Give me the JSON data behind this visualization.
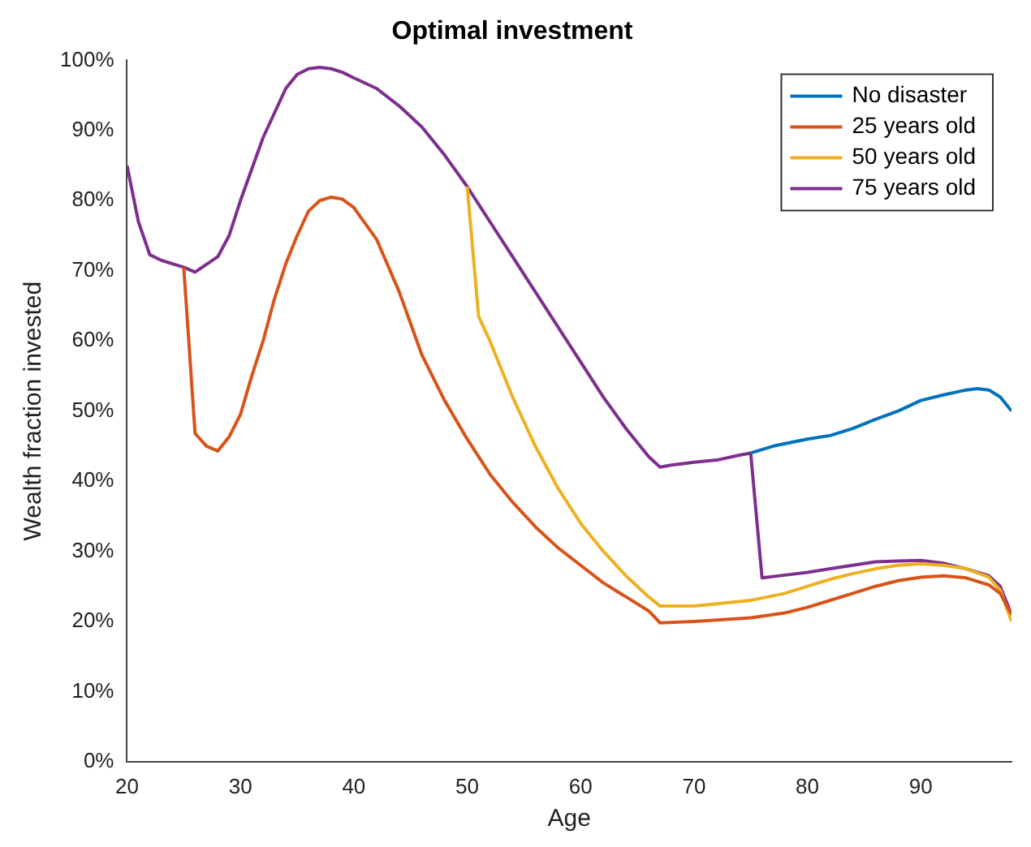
{
  "chart_data": {
    "type": "line",
    "title": "Optimal investment",
    "xlabel": "Age",
    "ylabel": "Wealth fraction invested",
    "legend": "top right",
    "grid": false,
    "marker": "none",
    "line_style": "solid",
    "xlim": [
      20,
      98
    ],
    "xticks": [
      20,
      30,
      40,
      50,
      60,
      70,
      80,
      90
    ],
    "ylim": [
      0,
      100
    ],
    "yticks": [
      {
        "value": 0,
        "label": "0%"
      },
      {
        "value": 10,
        "label": "10%"
      },
      {
        "value": 20,
        "label": "20%"
      },
      {
        "value": 30,
        "label": "30%"
      },
      {
        "value": 40,
        "label": "40%"
      },
      {
        "value": 50,
        "label": "50%"
      },
      {
        "value": 60,
        "label": "60%"
      },
      {
        "value": 70,
        "label": "70%"
      },
      {
        "value": 80,
        "label": "80%"
      },
      {
        "value": 90,
        "label": "90%"
      },
      {
        "value": 100,
        "label": "100%"
      }
    ],
    "series": [
      {
        "name": "No disaster",
        "color": "#0072bd",
        "x": [
          75,
          77,
          80,
          82,
          84,
          86,
          88,
          90,
          92,
          94,
          95,
          96,
          97,
          98
        ],
        "values": [
          44,
          45,
          46,
          46.5,
          47.5,
          48.8,
          50,
          51.5,
          52.3,
          53,
          53.2,
          53,
          52,
          50
        ]
      },
      {
        "name": "25 years old",
        "color": "#d95319",
        "x": [
          25,
          26,
          27,
          28,
          29,
          30,
          31,
          32,
          33,
          34,
          35,
          36,
          37,
          38,
          39,
          40,
          42,
          44,
          46,
          48,
          50,
          52,
          54,
          56,
          58,
          60,
          62,
          64,
          66,
          67,
          70,
          72,
          75,
          78,
          80,
          82,
          84,
          86,
          88,
          90,
          92,
          94,
          96,
          97,
          98
        ],
        "values": [
          70.5,
          46.8,
          45,
          44.3,
          46.3,
          49.5,
          55,
          60,
          66,
          71,
          75,
          78.5,
          80,
          80.5,
          80.2,
          79,
          74.5,
          67,
          58,
          51.5,
          46,
          41,
          37,
          33.5,
          30.5,
          28,
          25.5,
          23.5,
          21.5,
          19.8,
          20,
          20.2,
          20.5,
          21.2,
          22,
          23,
          24,
          25,
          25.8,
          26.3,
          26.5,
          26.2,
          25.2,
          24,
          21
        ]
      },
      {
        "name": "50 years old",
        "color": "#edb120",
        "x": [
          50,
          51,
          52,
          54,
          56,
          58,
          60,
          62,
          64,
          66,
          67,
          70,
          72,
          75,
          78,
          80,
          82,
          84,
          86,
          88,
          90,
          92,
          94,
          96,
          97,
          98
        ],
        "values": [
          82,
          63.5,
          60,
          52,
          45,
          39,
          34,
          30,
          26.5,
          23.5,
          22.2,
          22.2,
          22.5,
          23,
          24,
          25,
          26,
          26.8,
          27.5,
          28,
          28.2,
          28,
          27.5,
          26.3,
          24.5,
          20
        ]
      },
      {
        "name": "75 years old",
        "color": "#7e2f8e",
        "x": [
          20,
          21,
          22,
          23,
          24,
          25,
          26,
          28,
          29,
          30,
          32,
          34,
          35,
          36,
          37,
          38,
          39,
          40,
          42,
          44,
          46,
          48,
          50,
          52,
          54,
          56,
          58,
          60,
          62,
          64,
          66,
          67,
          68,
          70,
          72,
          74,
          75,
          76,
          78,
          80,
          82,
          84,
          86,
          88,
          90,
          92,
          94,
          96,
          97,
          98
        ],
        "values": [
          85,
          77,
          72.3,
          71.5,
          71,
          70.5,
          69.8,
          72,
          75,
          80,
          89,
          96,
          98,
          98.8,
          99,
          98.8,
          98.3,
          97.5,
          96,
          93.5,
          90.5,
          86.5,
          82,
          77,
          72,
          67,
          62,
          57,
          52,
          47.5,
          43.5,
          42,
          42.3,
          42.7,
          43,
          43.7,
          44,
          26.2,
          26.6,
          27,
          27.5,
          28,
          28.5,
          28.6,
          28.7,
          28.3,
          27.5,
          26.5,
          25,
          21
        ]
      }
    ]
  }
}
